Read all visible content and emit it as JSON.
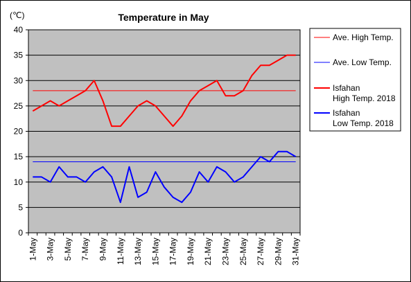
{
  "chart_data": {
    "type": "line",
    "title": "Temperature in May",
    "unit_label": "(℃)",
    "ylim": [
      0,
      40
    ],
    "yticks": [
      "0",
      "5",
      "10",
      "15",
      "20",
      "25",
      "30",
      "35",
      "40"
    ],
    "x": [
      "1-May",
      "2-May",
      "3-May",
      "4-May",
      "5-May",
      "6-May",
      "7-May",
      "8-May",
      "9-May",
      "10-May",
      "11-May",
      "12-May",
      "13-May",
      "14-May",
      "15-May",
      "16-May",
      "17-May",
      "18-May",
      "19-May",
      "20-May",
      "21-May",
      "22-May",
      "23-May",
      "24-May",
      "25-May",
      "26-May",
      "27-May",
      "28-May",
      "29-May",
      "30-May",
      "31-May"
    ],
    "xtick_labels": [
      "1-May",
      "3-May",
      "5-May",
      "7-May",
      "9-May",
      "11-May",
      "13-May",
      "15-May",
      "17-May",
      "19-May",
      "21-May",
      "23-May",
      "25-May",
      "27-May",
      "29-May",
      "31-May"
    ],
    "grid": true,
    "legend_position": "right",
    "plot_background": "#c0c0c0",
    "series": [
      {
        "name": "Ave. High Temp.",
        "color": "#ff0000",
        "width": 1,
        "values": [
          28,
          28,
          28,
          28,
          28,
          28,
          28,
          28,
          28,
          28,
          28,
          28,
          28,
          28,
          28,
          28,
          28,
          28,
          28,
          28,
          28,
          28,
          28,
          28,
          28,
          28,
          28,
          28,
          28,
          28,
          28
        ]
      },
      {
        "name": "Ave. Low Temp.",
        "color": "#0000ff",
        "width": 1,
        "values": [
          14,
          14,
          14,
          14,
          14,
          14,
          14,
          14,
          14,
          14,
          14,
          14,
          14,
          14,
          14,
          14,
          14,
          14,
          14,
          14,
          14,
          14,
          14,
          14,
          14,
          14,
          14,
          14,
          14,
          14,
          14
        ]
      },
      {
        "name": "Isfahan\nHigh Temp. 2018",
        "color": "#ff0000",
        "width": 2,
        "values": [
          24,
          25,
          26,
          25,
          26,
          27,
          28,
          30,
          26,
          21,
          21,
          23,
          25,
          26,
          25,
          23,
          21,
          23,
          26,
          28,
          29,
          30,
          27,
          27,
          28,
          31,
          33,
          33,
          34,
          35,
          35
        ]
      },
      {
        "name": "Isfahan\nLow Temp. 2018",
        "color": "#0000ff",
        "width": 2,
        "values": [
          11,
          11,
          10,
          13,
          11,
          11,
          10,
          12,
          13,
          11,
          6,
          13,
          7,
          8,
          12,
          9,
          7,
          6,
          8,
          12,
          10,
          13,
          12,
          10,
          11,
          13,
          15,
          14,
          16,
          16,
          15
        ]
      }
    ]
  }
}
